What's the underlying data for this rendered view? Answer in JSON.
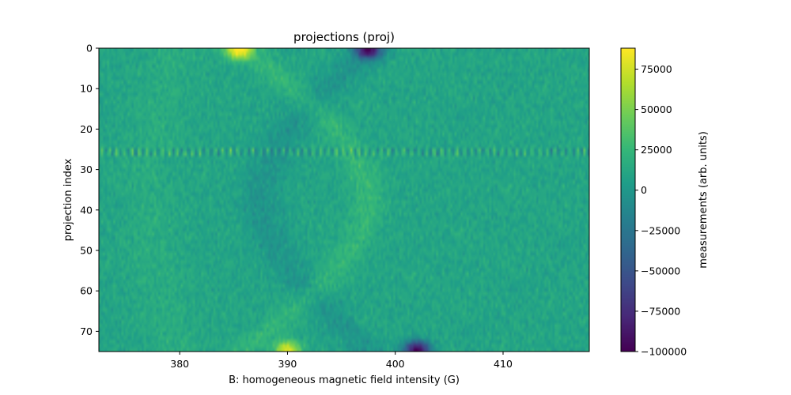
{
  "chart_data": {
    "type": "heatmap",
    "title": "projections (proj)",
    "xlabel": "B: homogeneous magnetic field intensity (G)",
    "ylabel": "projection index",
    "x_range": [
      372.5,
      418.0
    ],
    "y_range": [
      75,
      0
    ],
    "x_ticks": [
      380,
      390,
      400,
      410
    ],
    "y_ticks": [
      0,
      10,
      20,
      30,
      40,
      50,
      60,
      70
    ],
    "colormap": "viridis",
    "colorbar": {
      "label": "measurements (arb. units)",
      "range": [
        -100000,
        88000
      ],
      "ticks": [
        -100000,
        -75000,
        -50000,
        -25000,
        0,
        25000,
        50000,
        75000
      ],
      "tick_labels": [
        "−100000",
        "−75000",
        "−50000",
        "−25000",
        "0",
        "25000",
        "50000",
        "75000"
      ]
    },
    "grid": false,
    "features": [
      {
        "name": "bright-peak",
        "x": 385.5,
        "y": 0,
        "value": 88000
      },
      {
        "name": "dark-peak",
        "x": 397.5,
        "y": 0,
        "value": -90000
      },
      {
        "name": "bright-peak",
        "x": 390.0,
        "y": 75,
        "value": 80000
      },
      {
        "name": "dark-peak",
        "x": 402.0,
        "y": 75,
        "value": -100000
      }
    ]
  }
}
